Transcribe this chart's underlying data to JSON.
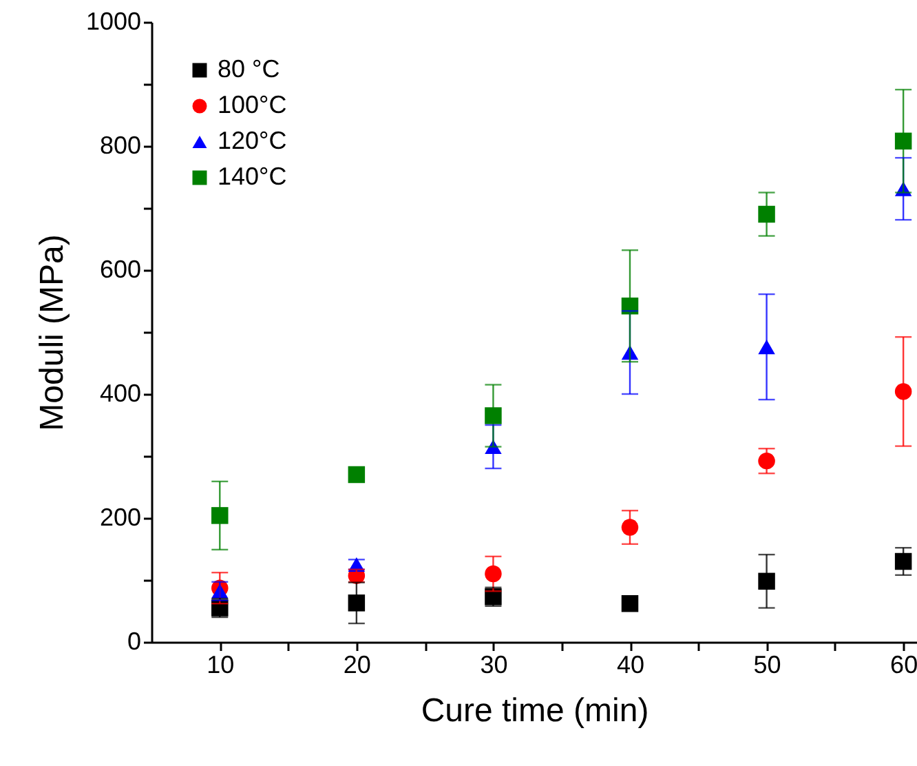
{
  "chart_data": {
    "type": "scatter",
    "xlabel": "Cure time (min)",
    "ylabel": "Moduli (MPa)",
    "x": [
      10,
      20,
      30,
      40,
      50,
      60
    ],
    "xlim": [
      5,
      61
    ],
    "xticks": [
      10,
      {
        "value": 15,
        "label": null
      },
      20,
      {
        "value": 25,
        "label": null
      },
      30,
      {
        "value": 35,
        "label": null
      },
      40,
      {
        "value": 45,
        "label": null
      },
      50,
      {
        "value": 55,
        "label": null
      },
      60
    ],
    "ylim": [
      0,
      1000
    ],
    "yticks": [
      0,
      {
        "value": 100,
        "label": null
      },
      200,
      {
        "value": 300,
        "label": null
      },
      400,
      {
        "value": 500,
        "label": null
      },
      600,
      {
        "value": 700,
        "label": null
      },
      800,
      {
        "value": 900,
        "label": null
      },
      1000
    ],
    "grid": false,
    "legend": "top left",
    "series": [
      {
        "name": "80 °C",
        "color": "#000000",
        "marker": "square",
        "values": [
          55,
          63,
          73,
          62,
          98,
          130
        ],
        "errors": [
          15,
          33,
          15,
          null,
          43,
          22
        ]
      },
      {
        "name": "100°C",
        "color": "#ff0000",
        "marker": "circle",
        "values": [
          87,
          107,
          110,
          185,
          292,
          404
        ],
        "errors": [
          25,
          10,
          28,
          27,
          20,
          88
        ]
      },
      {
        "name": "120°C",
        "color": "#0000ff",
        "marker": "triangle",
        "values": [
          82,
          125,
          315,
          467,
          476,
          731
        ],
        "errors": [
          15,
          8,
          35,
          67,
          85,
          50
        ]
      },
      {
        "name": "140°C",
        "color": "#008000",
        "marker": "square",
        "values": [
          204,
          270,
          365,
          542,
          690,
          808
        ],
        "errors": [
          55,
          null,
          50,
          90,
          35,
          83
        ]
      }
    ]
  }
}
